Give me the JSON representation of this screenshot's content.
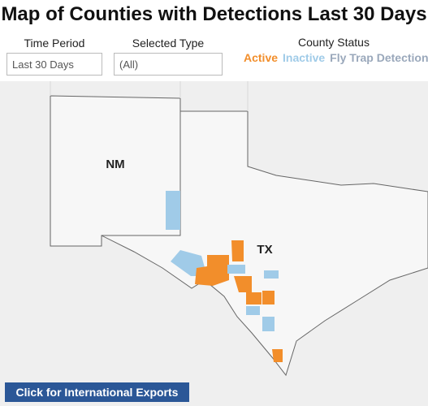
{
  "header": {
    "title": "Map of Counties with Detections Last 30 Days"
  },
  "filters": [
    {
      "label": "Time Period",
      "value": "Last 30 Days"
    },
    {
      "label": "Selected Type",
      "value": "(All)"
    }
  ],
  "legend": {
    "title": "County Status",
    "items": [
      {
        "name": "Active",
        "color": "#f28e2b"
      },
      {
        "name": "Inactive",
        "color": "#a0cbe8"
      },
      {
        "name": "Fly Trap Detection",
        "color": "#9aa8bb"
      }
    ]
  },
  "map": {
    "labels": [
      "NM",
      "TX"
    ]
  },
  "button": {
    "label": "Click for International Exports"
  }
}
